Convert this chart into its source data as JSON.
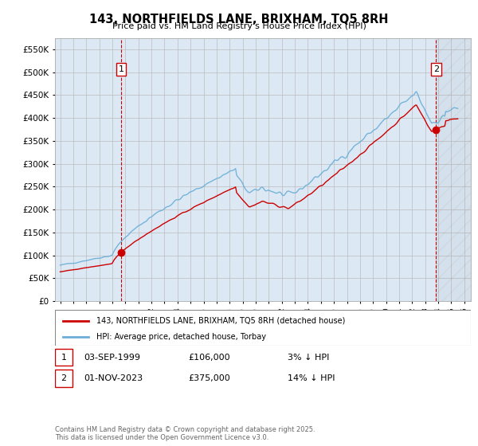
{
  "title": "143, NORTHFIELDS LANE, BRIXHAM, TQ5 8RH",
  "subtitle": "Price paid vs. HM Land Registry's House Price Index (HPI)",
  "legend_line1": "143, NORTHFIELDS LANE, BRIXHAM, TQ5 8RH (detached house)",
  "legend_line2": "HPI: Average price, detached house, Torbay",
  "annotation1_date": "03-SEP-1999",
  "annotation1_price": "£106,000",
  "annotation1_hpi": "3% ↓ HPI",
  "annotation2_date": "01-NOV-2023",
  "annotation2_price": "£375,000",
  "annotation2_hpi": "14% ↓ HPI",
  "footer": "Contains HM Land Registry data © Crown copyright and database right 2025.\nThis data is licensed under the Open Government Licence v3.0.",
  "hpi_color": "#6baed6",
  "price_color": "#cc0000",
  "vline_color": "#cc0000",
  "grid_color": "#bbbbbb",
  "plot_bg_color": "#dce9f5",
  "bg_color": "#ffffff",
  "ylim_max": 575000,
  "sale1_year": 1999.67,
  "sale1_price": 106000,
  "sale2_year": 2023.83,
  "sale2_price": 375000
}
